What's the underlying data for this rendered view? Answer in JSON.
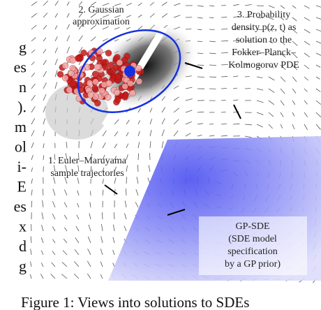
{
  "left_column": [
    "g",
    "es",
    "n",
    ").",
    "m",
    "ol",
    "i-",
    "E",
    "es",
    "x",
    "d",
    "g"
  ],
  "figure": {
    "gaussian_label": [
      "2. Gaussian",
      "approximation"
    ],
    "density_label": [
      "3. Probability",
      "density p(z, t) as",
      "solution to the",
      "Fokker–Planck–",
      "Kolmogorov PDE"
    ],
    "euler_label": [
      "1. Euler–Maruyama",
      "sample trajectories"
    ],
    "gpsde_label": [
      "GP-SDE",
      "(SDE model",
      "specification",
      "by a GP prior)"
    ]
  },
  "caption": "Figure 1: Views into solutions to SDEs"
}
